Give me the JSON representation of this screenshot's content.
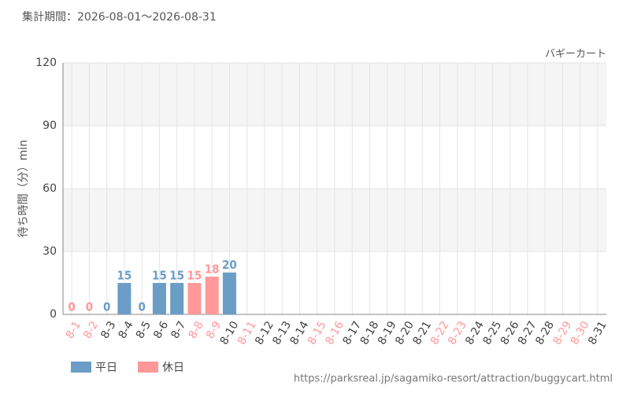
{
  "chart_data": {
    "type": "bar",
    "title": "集計期間：2026-08-01～2026-08-31",
    "subtitle": "バギーカート",
    "y_label": "待ち時間（分）min",
    "source": "https://parksreal.jp/sagamiko-resort/attraction/buggycart.html",
    "categories": [
      "8-1",
      "8-2",
      "8-3",
      "8-4",
      "8-5",
      "8-6",
      "8-7",
      "8-8",
      "8-9",
      "8-10",
      "8-11",
      "8-12",
      "8-13",
      "8-14",
      "8-15",
      "8-16",
      "8-17",
      "8-18",
      "8-19",
      "8-20",
      "8-21",
      "8-22",
      "8-23",
      "8-24",
      "8-25",
      "8-26",
      "8-27",
      "8-28",
      "8-29",
      "8-30",
      "8-31"
    ],
    "category_groups": [
      1,
      1,
      0,
      0,
      0,
      0,
      0,
      1,
      1,
      0,
      1,
      0,
      0,
      0,
      1,
      1,
      0,
      0,
      0,
      0,
      0,
      1,
      1,
      0,
      0,
      0,
      0,
      0,
      1,
      1,
      0
    ],
    "series": [
      {
        "name": "平日",
        "color": "#6b9dc6",
        "values": [
          null,
          null,
          0,
          15,
          0,
          15,
          15,
          null,
          null,
          20,
          null,
          null,
          null,
          null,
          null,
          null,
          null,
          null,
          null,
          null,
          null,
          null,
          null,
          null,
          null,
          null,
          null,
          null,
          null,
          null,
          null
        ]
      },
      {
        "name": "休日",
        "color": "#ff9898",
        "values": [
          0,
          0,
          null,
          null,
          null,
          null,
          null,
          15,
          18,
          null,
          null,
          null,
          null,
          null,
          null,
          null,
          null,
          null,
          null,
          null,
          null,
          null,
          null,
          null,
          null,
          null,
          null,
          null,
          null,
          null,
          null
        ]
      }
    ],
    "ylim": [
      0,
      120
    ],
    "yticks": [
      0,
      30,
      60,
      90,
      120
    ],
    "grid": true
  }
}
